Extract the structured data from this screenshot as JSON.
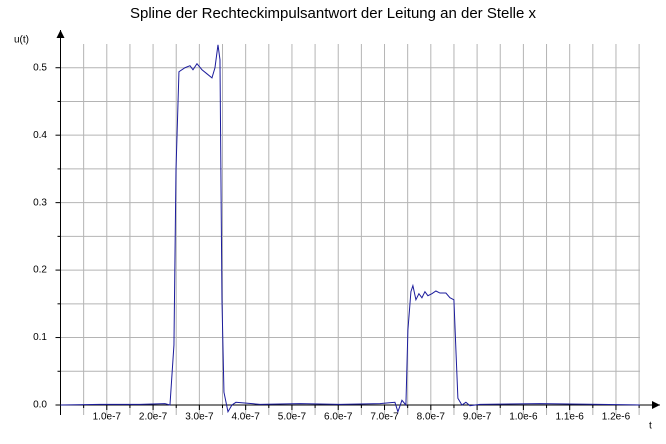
{
  "chart_data": {
    "type": "line",
    "title": "Spline der Rechteckimpulsantwort der Leitung an der Stelle x",
    "y_label": "u(t)",
    "x_label": "t",
    "xlim": [
      0,
      1.28e-06
    ],
    "ylim": [
      0,
      0.55
    ],
    "xticks": [
      {
        "value": 1e-07,
        "label": "1.0e-7"
      },
      {
        "value": 2e-07,
        "label": "2.0e-7"
      },
      {
        "value": 3e-07,
        "label": "3.0e-7"
      },
      {
        "value": 4e-07,
        "label": "4.0e-7"
      },
      {
        "value": 5e-07,
        "label": "5.0e-7"
      },
      {
        "value": 6e-07,
        "label": "6.0e-7"
      },
      {
        "value": 7e-07,
        "label": "7.0e-7"
      },
      {
        "value": 8e-07,
        "label": "8.0e-7"
      },
      {
        "value": 9e-07,
        "label": "9.0e-7"
      },
      {
        "value": 1e-06,
        "label": "1.0e-6"
      },
      {
        "value": 1.1e-06,
        "label": "1.1e-6"
      },
      {
        "value": 1.2e-06,
        "label": "1.2e-6"
      }
    ],
    "yticks": [
      {
        "value": 0,
        "label": "0.0"
      },
      0.1,
      0.2,
      0.3,
      0.4,
      0.5
    ],
    "xminorticks": [
      5e-08,
      1.5e-07,
      2.5e-07,
      3.5e-07,
      4.5e-07,
      5.5e-07,
      6.5e-07,
      7.5e-07,
      8.5e-07,
      9.5e-07,
      1.05e-06,
      1.15e-06,
      1.25e-06
    ],
    "yminorticks": [
      0.05,
      0.15,
      0.25,
      0.35,
      0.45
    ],
    "grid": true,
    "series": [
      {
        "color": "#1c1c9c",
        "x": [
          0,
          8.53e-08,
          1.717e-07,
          2.257e-07,
          2.365e-07,
          2.451e-07,
          2.495e-07,
          2.559e-07,
          2.689e-07,
          2.797e-07,
          2.862e-07,
          2.948e-07,
          3.056e-07,
          3.164e-07,
          3.272e-07,
          3.337e-07,
          3.402e-07,
          3.445e-07,
          3.488e-07,
          3.531e-07,
          3.618e-07,
          3.704e-07,
          3.79e-07,
          4.309e-07,
          5.173e-07,
          6.037e-07,
          6.901e-07,
          7.225e-07,
          7.289e-07,
          7.376e-07,
          7.462e-07,
          7.505e-07,
          7.57e-07,
          7.613e-07,
          7.678e-07,
          7.743e-07,
          7.808e-07,
          7.873e-07,
          7.937e-07,
          8.024e-07,
          8.11e-07,
          8.197e-07,
          8.326e-07,
          8.413e-07,
          8.499e-07,
          8.542e-07,
          8.585e-07,
          8.672e-07,
          8.758e-07,
          8.845e-07,
          9.061e-07,
          1.0356e-06,
          1.1652e-06,
          1.2516e-06
        ],
        "values": [
          0,
          0.001,
          0.001,
          0.002,
          0,
          0.089,
          0.349,
          0.494,
          0.5,
          0.503,
          0.497,
          0.506,
          0.497,
          0.491,
          0.485,
          0.5,
          0.534,
          0.512,
          0.156,
          0.019,
          -0.01,
          0,
          0.004,
          0.001,
          0.002,
          0.001,
          0.002,
          0.004,
          -0.01,
          0.007,
          0,
          0.111,
          0.168,
          0.177,
          0.156,
          0.165,
          0.159,
          0.168,
          0.162,
          0.165,
          0.169,
          0.166,
          0.166,
          0.159,
          0.156,
          0.082,
          0.01,
          0,
          0.004,
          -0.001,
          0.001,
          0.002,
          0.001,
          0
        ]
      }
    ]
  }
}
